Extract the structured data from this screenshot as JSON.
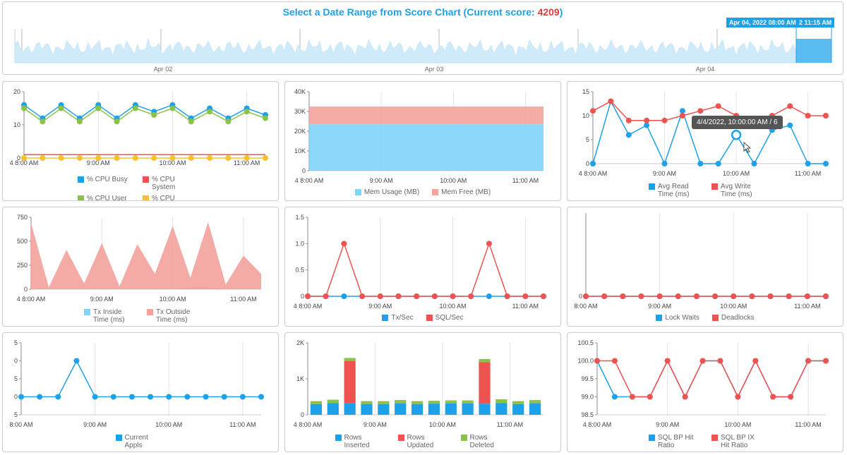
{
  "score_panel": {
    "title_prefix": "Select a Date Range from Score Chart (Current score: ",
    "score": "4209",
    "title_suffix": ")",
    "axis_labels": [
      "Apr 02",
      "Apr 03",
      "Apr 04"
    ],
    "range_start_label": "Apr 04, 2022 08:00 AM",
    "range_end_label": "2 11:15 AM"
  },
  "tooltip": "4/4/2022, 10:00:00 AM / 6",
  "colors": {
    "blue": "#1da1e8",
    "red": "#ef5350",
    "green": "#8bc34a",
    "yellow": "#fbc02d",
    "light_blue": "#81d4fa",
    "light_red": "#f4a29b"
  },
  "chart_data": [
    {
      "id": "cpu",
      "type": "line",
      "x": [
        "8:00 AM",
        "8:15 AM",
        "8:30 AM",
        "8:45 AM",
        "9:00 AM",
        "9:15 AM",
        "9:30 AM",
        "9:45 AM",
        "10:00 AM",
        "10:15 AM",
        "10:30 AM",
        "10:45 AM",
        "11:00 AM",
        "11:15 AM"
      ],
      "xticks": [
        "4 8:00 AM",
        "9:00 AM",
        "10:00 AM",
        "11:00 AM"
      ],
      "yticks": [
        "0",
        "10",
        "20"
      ],
      "ylim": [
        0,
        20
      ],
      "series": [
        {
          "name": "% CPU Busy",
          "color": "#1da1e8",
          "values": [
            16,
            12,
            16,
            12,
            16,
            12,
            16,
            14,
            16,
            12,
            15,
            12,
            15,
            13
          ]
        },
        {
          "name": "% CPU System",
          "color": "#ef5350",
          "values": [
            1,
            1,
            1,
            1,
            1,
            1,
            1,
            1,
            1,
            1,
            1,
            1,
            1,
            1
          ],
          "markers": false
        },
        {
          "name": "% CPU User",
          "color": "#8bc34a",
          "values": [
            15,
            11,
            15,
            11,
            15,
            11,
            15,
            13,
            15,
            11,
            14,
            11,
            14,
            12
          ]
        },
        {
          "name": "% CPU Waiting",
          "color": "#fbc02d",
          "values": [
            0,
            0,
            0,
            0,
            0,
            0,
            0,
            0,
            0,
            0,
            0,
            0,
            0,
            0
          ]
        }
      ]
    },
    {
      "id": "mem",
      "type": "area",
      "x": [
        "8:00 AM",
        "8:15 AM",
        "8:30 AM",
        "8:45 AM",
        "9:00 AM",
        "9:15 AM",
        "9:30 AM",
        "9:45 AM",
        "10:00 AM",
        "10:15 AM",
        "10:30 AM",
        "10:45 AM",
        "11:00 AM",
        "11:15 AM"
      ],
      "xticks": [
        "4 8:00 AM",
        "9:00 AM",
        "10:00 AM",
        "11:00 AM"
      ],
      "yticks": [
        "0",
        "10K",
        "20K",
        "30K",
        "40K"
      ],
      "ylim": [
        0,
        40000
      ],
      "stacked": true,
      "series": [
        {
          "name": "Mem Usage (MB)",
          "color": "#81d4fa",
          "values": [
            23500,
            23500,
            23500,
            23500,
            23500,
            23500,
            23500,
            23500,
            23500,
            23500,
            23500,
            23500,
            23500,
            23500
          ]
        },
        {
          "name": "Mem Free (MB)",
          "color": "#f4a29b",
          "values": [
            9000,
            9000,
            9000,
            9000,
            9000,
            9000,
            9000,
            9000,
            9000,
            9000,
            9000,
            9000,
            9000,
            9000
          ]
        }
      ]
    },
    {
      "id": "io",
      "type": "line",
      "x": [
        "8:00 AM",
        "8:15 AM",
        "8:30 AM",
        "8:45 AM",
        "9:00 AM",
        "9:15 AM",
        "9:30 AM",
        "9:45 AM",
        "10:00 AM",
        "10:15 AM",
        "10:30 AM",
        "10:45 AM",
        "11:00 AM",
        "11:15 AM"
      ],
      "xticks": [
        "4 8:00 AM",
        "9:00 AM",
        "10:00 AM",
        "11:00 AM"
      ],
      "yticks": [
        "0",
        "5",
        "10",
        "15"
      ],
      "ylim": [
        0,
        15
      ],
      "series": [
        {
          "name": "Avg Read Time (ms)",
          "color": "#1da1e8",
          "values": [
            0,
            13,
            6,
            8,
            0,
            11,
            0,
            0,
            6,
            0,
            7,
            8,
            0,
            0
          ]
        },
        {
          "name": "Avg Write Time (ms)",
          "color": "#ef5350",
          "values": [
            11,
            13,
            9,
            9,
            9,
            10,
            11,
            12,
            10,
            9,
            10,
            12,
            10,
            10
          ]
        }
      ]
    },
    {
      "id": "tx",
      "type": "area",
      "x": [
        "8:00 AM",
        "8:15 AM",
        "8:30 AM",
        "8:45 AM",
        "9:00 AM",
        "9:15 AM",
        "9:30 AM",
        "9:45 AM",
        "10:00 AM",
        "10:15 AM",
        "10:30 AM",
        "10:45 AM",
        "11:00 AM",
        "11:15 AM"
      ],
      "xticks": [
        "4 8:00 AM",
        "9:00 AM",
        "10:00 AM",
        "11:00 AM"
      ],
      "yticks": [
        "0",
        "250",
        "500",
        "750"
      ],
      "ylim": [
        0,
        750
      ],
      "series": [
        {
          "name": "Tx Inside Time (ms)",
          "color": "#81d4fa",
          "values": [
            2,
            2,
            2,
            2,
            2,
            2,
            2,
            2,
            2,
            20,
            20,
            5,
            2,
            2
          ]
        },
        {
          "name": "Tx Outside Time (ms)",
          "color": "#f4a29b",
          "values": [
            690,
            20,
            410,
            60,
            480,
            30,
            470,
            160,
            660,
            120,
            700,
            50,
            350,
            160
          ]
        }
      ]
    },
    {
      "id": "txsec",
      "type": "line",
      "x": [
        "8:00 AM",
        "8:15 AM",
        "8:30 AM",
        "8:45 AM",
        "9:00 AM",
        "9:15 AM",
        "9:30 AM",
        "9:45 AM",
        "10:00 AM",
        "10:15 AM",
        "10:30 AM",
        "10:45 AM",
        "11:00 AM",
        "11:15 AM"
      ],
      "xticks": [
        "4 8:00 AM",
        "9:00 AM",
        "10:00 AM",
        "11:00 AM"
      ],
      "yticks": [
        "0",
        "0.5",
        "1.0",
        "1.5"
      ],
      "ylim": [
        0,
        1.5
      ],
      "series": [
        {
          "name": "Tx/Sec",
          "color": "#1da1e8",
          "values": [
            0,
            0,
            0,
            0,
            0,
            0,
            0,
            0,
            0,
            0,
            0,
            0,
            0,
            0
          ]
        },
        {
          "name": "SQL/Sec",
          "color": "#ef5350",
          "values": [
            0,
            0,
            1,
            0,
            0,
            0,
            0,
            0,
            0,
            0,
            1,
            0,
            0,
            0
          ]
        }
      ]
    },
    {
      "id": "locks",
      "type": "line",
      "x": [
        "8:00 AM",
        "8:15 AM",
        "8:30 AM",
        "8:45 AM",
        "9:00 AM",
        "9:15 AM",
        "9:30 AM",
        "9:45 AM",
        "10:00 AM",
        "10:15 AM",
        "10:30 AM",
        "10:45 AM",
        "11:00 AM",
        "11:15 AM"
      ],
      "xticks": [
        "8:00 AM",
        "9:00 AM",
        "10:00 AM",
        "11:00 AM"
      ],
      "yticks": [
        "0"
      ],
      "ylim": [
        0,
        1
      ],
      "series": [
        {
          "name": "Lock Waits",
          "color": "#1da1e8",
          "values": [
            0,
            0,
            0,
            0,
            0,
            0,
            0,
            0,
            0,
            0,
            0,
            0,
            0,
            0
          ]
        },
        {
          "name": "Deadlocks",
          "color": "#ef5350",
          "values": [
            0,
            0,
            0,
            0,
            0,
            0,
            0,
            0,
            0,
            0,
            0,
            0,
            0,
            0
          ]
        }
      ]
    },
    {
      "id": "appls",
      "type": "line",
      "x": [
        "8:00 AM",
        "8:15 AM",
        "8:30 AM",
        "8:45 AM",
        "9:00 AM",
        "9:15 AM",
        "9:30 AM",
        "9:45 AM",
        "10:00 AM",
        "10:15 AM",
        "10:30 AM",
        "10:45 AM",
        "11:00 AM",
        "11:15 AM"
      ],
      "xticks": [
        "8:00 AM",
        "9:00 AM",
        "10:00 AM",
        "11:00 AM"
      ],
      "yticks": [
        "5",
        "0",
        "5",
        "0",
        "5"
      ],
      "ylim": [
        0,
        4
      ],
      "series": [
        {
          "name": "Current Appls",
          "color": "#1da1e8",
          "values": [
            1,
            1,
            1,
            3,
            1,
            1,
            1,
            1,
            1,
            1,
            1,
            1,
            1,
            1
          ]
        }
      ]
    },
    {
      "id": "rows",
      "type": "bar",
      "x": [
        "8:00 AM",
        "8:15 AM",
        "8:30 AM",
        "8:45 AM",
        "9:00 AM",
        "9:15 AM",
        "9:30 AM",
        "9:45 AM",
        "10:00 AM",
        "10:15 AM",
        "10:30 AM",
        "10:45 AM",
        "11:00 AM",
        "11:15 AM"
      ],
      "xticks": [
        "4 8:00 AM",
        "9:00 AM",
        "10:00 AM",
        "11:00 AM"
      ],
      "yticks": [
        "0",
        "1K",
        "2K"
      ],
      "ylim": [
        0,
        2000
      ],
      "stacked": true,
      "series": [
        {
          "name": "Rows Inserted",
          "color": "#1da1e8",
          "values": [
            300,
            330,
            330,
            300,
            300,
            320,
            300,
            310,
            320,
            320,
            310,
            330,
            300,
            320
          ]
        },
        {
          "name": "Rows Updated",
          "color": "#ef5350",
          "values": [
            0,
            0,
            1160,
            0,
            0,
            0,
            0,
            0,
            0,
            0,
            1150,
            0,
            0,
            0
          ]
        },
        {
          "name": "Rows Deleted",
          "color": "#8bc34a",
          "values": [
            80,
            90,
            90,
            80,
            80,
            90,
            80,
            80,
            80,
            80,
            90,
            100,
            80,
            90
          ]
        }
      ]
    },
    {
      "id": "bp",
      "type": "line",
      "x": [
        "8:00 AM",
        "8:15 AM",
        "8:30 AM",
        "8:45 AM",
        "9:00 AM",
        "9:15 AM",
        "9:30 AM",
        "9:45 AM",
        "10:00 AM",
        "10:15 AM",
        "10:30 AM",
        "10:45 AM",
        "11:00 AM",
        "11:15 AM"
      ],
      "xticks": [
        "4 8:00 AM",
        "9:00 AM",
        "10:00 AM",
        "11:00 AM"
      ],
      "yticks": [
        "98.5",
        "99.0",
        "99.5",
        "100.0",
        "100.5"
      ],
      "ylim": [
        98.5,
        100.5
      ],
      "series": [
        {
          "name": "SQL BP Hit Ratio",
          "color": "#1da1e8",
          "values": [
            100,
            99,
            99,
            99,
            100,
            99,
            100,
            100,
            99,
            100,
            99,
            99,
            100,
            100
          ]
        },
        {
          "name": "SQL BP IX Hit Ratio",
          "color": "#ef5350",
          "values": [
            100,
            100,
            99,
            99,
            100,
            99,
            100,
            100,
            99,
            100,
            99,
            99,
            100,
            100
          ]
        }
      ]
    }
  ]
}
